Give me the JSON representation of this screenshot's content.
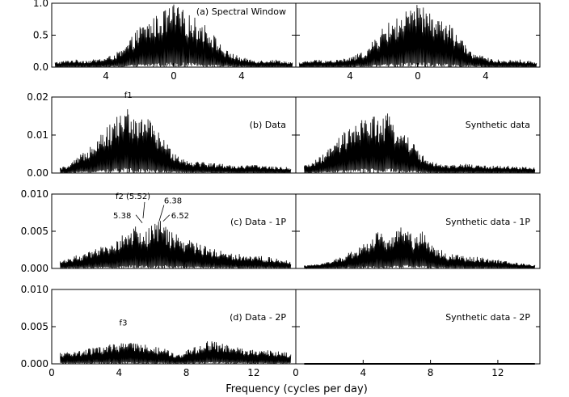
{
  "figure": {
    "xlabel": "Frequency (cycles per day)"
  },
  "chart_data": [
    {
      "type": "line",
      "title": "(a) Spectral    Window",
      "column": "left",
      "row": 0,
      "xlim": [
        -7.2,
        7.2
      ],
      "ylim": [
        0,
        1.0
      ],
      "xtick_values": [
        -4,
        0,
        4
      ],
      "xtick_labels": [
        "4",
        "0",
        "4"
      ],
      "ytick_values": [
        0,
        0.5,
        1.0
      ],
      "ytick_labels": [
        "0.0",
        "0.5",
        "1.0"
      ],
      "series": [
        {
          "x": [
            -7.0,
            -6.0,
            -5.0,
            -4.0,
            -3.0,
            -2.0,
            -1.0,
            0,
            1.0,
            2.0,
            3.0,
            4.0,
            5.0,
            6.0,
            7.0
          ],
          "y": [
            0.08,
            0.12,
            0.11,
            0.15,
            0.28,
            0.65,
            0.82,
            1.0,
            0.82,
            0.65,
            0.28,
            0.15,
            0.11,
            0.12,
            0.08
          ]
        }
      ]
    },
    {
      "type": "line",
      "title": "",
      "column": "right",
      "row": 0,
      "xlim": [
        -7.2,
        7.2
      ],
      "ylim": [
        0,
        1.0
      ],
      "xtick_values": [
        -4,
        0,
        4
      ],
      "xtick_labels": [
        "4",
        "0",
        "4"
      ],
      "ytick_values": [
        0,
        0.5,
        1.0
      ],
      "ytick_labels": [
        "",
        "",
        ""
      ],
      "series": [
        {
          "x": [
            -7.0,
            -6.0,
            -5.0,
            -4.0,
            -3.0,
            -2.0,
            -1.0,
            0,
            1.0,
            2.0,
            3.0,
            4.0,
            5.0,
            6.0,
            7.0
          ],
          "y": [
            0.08,
            0.12,
            0.11,
            0.15,
            0.28,
            0.65,
            0.82,
            1.0,
            0.82,
            0.65,
            0.28,
            0.15,
            0.11,
            0.12,
            0.08
          ]
        }
      ]
    },
    {
      "type": "line",
      "title": "(b) Data",
      "column": "left",
      "row": 1,
      "xlim": [
        0,
        14.5
      ],
      "ylim": [
        0,
        0.02
      ],
      "xtick_values": [
        0,
        4,
        8,
        12
      ],
      "xtick_labels": [
        "",
        "",
        "",
        ""
      ],
      "ytick_values": [
        0,
        0.01,
        0.02
      ],
      "ytick_labels": [
        "0.00",
        "0.01",
        "0.02"
      ],
      "annotations": [
        {
          "text": "f1",
          "x": 4.6,
          "y": 0.0185
        }
      ],
      "series": [
        {
          "x": [
            0.5,
            1.0,
            1.5,
            2.0,
            2.5,
            3.0,
            3.5,
            4.0,
            4.6,
            5.0,
            5.5,
            6.0,
            6.5,
            7.0,
            7.5,
            8.0,
            9.0,
            10.0,
            11.0,
            12.0,
            13.0,
            14.2
          ],
          "y": [
            0.0015,
            0.002,
            0.004,
            0.006,
            0.009,
            0.0115,
            0.013,
            0.016,
            0.018,
            0.0135,
            0.0165,
            0.013,
            0.01,
            0.007,
            0.005,
            0.0035,
            0.003,
            0.0025,
            0.002,
            0.0022,
            0.0018,
            0.0015
          ]
        }
      ]
    },
    {
      "type": "line",
      "title": "Synthetic data",
      "column": "right",
      "row": 1,
      "xlim": [
        0,
        14.5
      ],
      "ylim": [
        0,
        0.02
      ],
      "xtick_values": [
        0,
        4,
        8,
        12
      ],
      "xtick_labels": [
        "",
        "",
        "",
        ""
      ],
      "ytick_values": [
        0,
        0.01,
        0.02
      ],
      "ytick_labels": [
        "",
        "",
        ""
      ],
      "series": [
        {
          "x": [
            0.5,
            1.0,
            1.5,
            2.0,
            2.5,
            3.0,
            3.5,
            4.0,
            4.6,
            5.0,
            5.5,
            6.0,
            6.5,
            7.0,
            7.5,
            8.0,
            9.0,
            10.0,
            11.0,
            12.0,
            13.0,
            14.2
          ],
          "y": [
            0.002,
            0.003,
            0.0045,
            0.0065,
            0.009,
            0.0115,
            0.0125,
            0.0145,
            0.0165,
            0.0135,
            0.016,
            0.0125,
            0.011,
            0.008,
            0.005,
            0.003,
            0.002,
            0.0025,
            0.002,
            0.002,
            0.0018,
            0.0015
          ]
        }
      ]
    },
    {
      "type": "line",
      "title": "(c) Data - 1P",
      "column": "left",
      "row": 2,
      "xlim": [
        0,
        14.5
      ],
      "ylim": [
        0,
        0.01
      ],
      "xtick_values": [
        0,
        4,
        8,
        12
      ],
      "xtick_labels": [
        "",
        "",
        "",
        ""
      ],
      "ytick_values": [
        0,
        0.005,
        0.01
      ],
      "ytick_labels": [
        "0.000",
        "0.005",
        "0.010"
      ],
      "annotations": [
        {
          "text": "f2 (5.52)",
          "x": 5.52,
          "y": 0.0087
        },
        {
          "text": "5.38",
          "x": 5.38,
          "y": 0.0072
        },
        {
          "text": "6.38",
          "x": 6.38,
          "y": 0.0083
        },
        {
          "text": "6.52",
          "x": 6.52,
          "y": 0.0072
        }
      ],
      "series": [
        {
          "x": [
            0.5,
            1.0,
            1.5,
            2.0,
            2.5,
            3.0,
            3.5,
            4.0,
            4.5,
            5.0,
            5.5,
            6.0,
            6.5,
            7.0,
            7.5,
            8.0,
            9.0,
            10.0,
            11.0,
            12.0,
            13.0,
            14.2
          ],
          "y": [
            0.001,
            0.0015,
            0.0018,
            0.002,
            0.0025,
            0.003,
            0.0035,
            0.0042,
            0.005,
            0.0058,
            0.0048,
            0.0062,
            0.0066,
            0.005,
            0.0045,
            0.004,
            0.0032,
            0.0025,
            0.002,
            0.0018,
            0.0015,
            0.001
          ]
        }
      ]
    },
    {
      "type": "line",
      "title": "Synthetic data - 1P",
      "column": "right",
      "row": 2,
      "xlim": [
        0,
        14.5
      ],
      "ylim": [
        0,
        0.01
      ],
      "xtick_values": [
        0,
        4,
        8,
        12
      ],
      "xtick_labels": [
        "",
        "",
        "",
        ""
      ],
      "ytick_values": [
        0,
        0.005,
        0.01
      ],
      "ytick_labels": [
        "",
        "",
        ""
      ],
      "series": [
        {
          "x": [
            0.5,
            1.0,
            1.5,
            2.0,
            2.5,
            3.0,
            3.5,
            4.0,
            4.5,
            5.0,
            5.5,
            6.0,
            6.5,
            7.0,
            7.5,
            8.0,
            9.0,
            10.0,
            11.0,
            12.0,
            13.0,
            14.2
          ],
          "y": [
            0.0004,
            0.0005,
            0.0008,
            0.001,
            0.0014,
            0.002,
            0.0026,
            0.0033,
            0.0043,
            0.0053,
            0.0045,
            0.005,
            0.0062,
            0.0045,
            0.0053,
            0.0035,
            0.002,
            0.0017,
            0.0015,
            0.0012,
            0.0008,
            0.0005
          ]
        }
      ]
    },
    {
      "type": "line",
      "title": "(d) Data - 2P",
      "column": "left",
      "row": 3,
      "xlim": [
        0,
        14.5
      ],
      "ylim": [
        0,
        0.01
      ],
      "xtick_values": [
        0,
        4,
        8,
        12
      ],
      "xtick_labels": [
        "0",
        "4",
        "8",
        "12"
      ],
      "ytick_values": [
        0,
        0.005,
        0.01
      ],
      "ytick_labels": [
        "0.000",
        "0.005",
        "0.010"
      ],
      "annotations": [
        {
          "text": "f3",
          "x": 4.3,
          "y": 0.0045
        }
      ],
      "series": [
        {
          "x": [
            0.5,
            1.0,
            1.5,
            2.0,
            2.5,
            3.0,
            3.5,
            4.0,
            4.5,
            5.0,
            5.5,
            6.0,
            6.5,
            7.0,
            7.5,
            8.0,
            8.5,
            9.0,
            9.5,
            10.0,
            11.0,
            12.0,
            13.0,
            14.2
          ],
          "y": [
            0.0015,
            0.0017,
            0.0018,
            0.002,
            0.0022,
            0.0024,
            0.0026,
            0.0028,
            0.003,
            0.0028,
            0.0026,
            0.0024,
            0.0022,
            0.0018,
            0.0012,
            0.0018,
            0.0024,
            0.0028,
            0.0033,
            0.0028,
            0.0023,
            0.002,
            0.0018,
            0.0015
          ]
        }
      ]
    },
    {
      "type": "line",
      "title": "Synthetic data - 2P",
      "column": "right",
      "row": 3,
      "xlim": [
        0,
        14.5
      ],
      "ylim": [
        0,
        0.01
      ],
      "xtick_values": [
        0,
        4,
        8,
        12
      ],
      "xtick_labels": [
        "0",
        "4",
        "8",
        "12"
      ],
      "ytick_values": [
        0,
        0.005,
        0.01
      ],
      "ytick_labels": [
        "",
        "",
        ""
      ],
      "series": [
        {
          "x": [
            0.5,
            14.2
          ],
          "y": [
            0.0,
            0.0
          ]
        }
      ]
    }
  ]
}
